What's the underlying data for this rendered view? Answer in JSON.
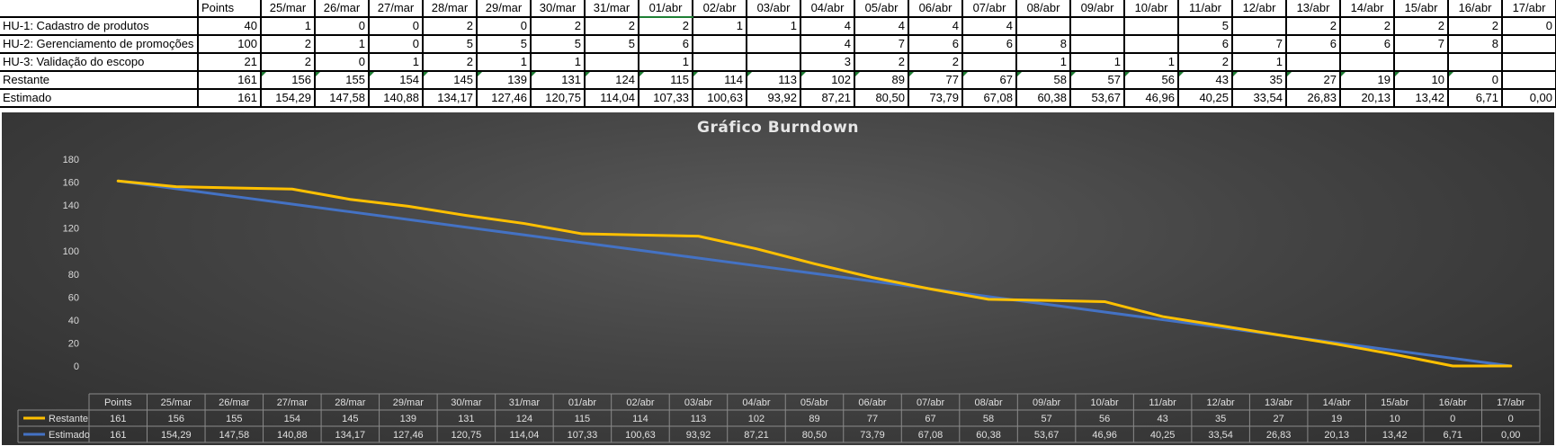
{
  "sheet": {
    "header": [
      "",
      "Points",
      "25/mar",
      "26/mar",
      "27/mar",
      "28/mar",
      "29/mar",
      "30/mar",
      "31/mar",
      "01/abr",
      "02/abr",
      "03/abr",
      "04/abr",
      "05/abr",
      "06/abr",
      "07/abr",
      "08/abr",
      "09/abr",
      "10/abr",
      "11/abr",
      "12/abr",
      "13/abr",
      "14/abr",
      "15/abr",
      "16/abr",
      "17/abr"
    ],
    "rows": [
      {
        "label": "HU-1: Cadastro de produtos",
        "cells": [
          "40",
          "1",
          "0",
          "0",
          "2",
          "0",
          "2",
          "2",
          "2",
          "1",
          "1",
          "4",
          "4",
          "4",
          "4",
          "",
          "",
          "",
          "5",
          "",
          "2",
          "2",
          "2",
          "2",
          "0"
        ]
      },
      {
        "label": "HU-2: Gerenciamento de promoções",
        "cells": [
          "100",
          "2",
          "1",
          "0",
          "5",
          "5",
          "5",
          "5",
          "6",
          "",
          "",
          "4",
          "7",
          "6",
          "6",
          "8",
          "",
          "",
          "6",
          "7",
          "6",
          "6",
          "7",
          "8",
          ""
        ]
      },
      {
        "label": "HU-3: Validação do escopo",
        "cells": [
          "21",
          "2",
          "0",
          "1",
          "2",
          "1",
          "1",
          "",
          "1",
          "",
          "",
          "3",
          "2",
          "2",
          "",
          "1",
          "1",
          "1",
          "2",
          "1",
          "",
          "",
          "",
          "",
          ""
        ]
      },
      {
        "label": "Restante",
        "cells": [
          "161",
          "156",
          "155",
          "154",
          "145",
          "139",
          "131",
          "124",
          "115",
          "114",
          "113",
          "102",
          "89",
          "77",
          "67",
          "58",
          "57",
          "56",
          "43",
          "35",
          "27",
          "19",
          "10",
          "0",
          ""
        ]
      },
      {
        "label": "Estimado",
        "cells": [
          "161",
          "154,29",
          "147,58",
          "140,88",
          "134,17",
          "127,46",
          "120,75",
          "114,04",
          "107,33",
          "100,63",
          "93,92",
          "87,21",
          "80,50",
          "73,79",
          "67,08",
          "60,38",
          "53,67",
          "46,96",
          "40,25",
          "33,54",
          "26,83",
          "20,13",
          "13,42",
          "6,71",
          "0,00"
        ]
      }
    ]
  },
  "chart_data": {
    "type": "line",
    "title": "Gráfico Burndown",
    "categories": [
      "Points",
      "25/mar",
      "26/mar",
      "27/mar",
      "28/mar",
      "29/mar",
      "30/mar",
      "31/mar",
      "01/abr",
      "02/abr",
      "03/abr",
      "04/abr",
      "05/abr",
      "06/abr",
      "07/abr",
      "08/abr",
      "09/abr",
      "10/abr",
      "11/abr",
      "12/abr",
      "13/abr",
      "14/abr",
      "15/abr",
      "16/abr",
      "17/abr"
    ],
    "ylim": [
      0,
      180
    ],
    "yticks": [
      0,
      20,
      40,
      60,
      80,
      100,
      120,
      140,
      160,
      180
    ],
    "grid": false,
    "legend": "data-table",
    "series": [
      {
        "name": "Restante",
        "color": "#FFC000",
        "values": [
          161,
          156,
          155,
          154,
          145,
          139,
          131,
          124,
          115,
          114,
          113,
          102,
          89,
          77,
          67,
          58,
          57,
          56,
          43,
          35,
          27,
          19,
          10,
          0,
          0
        ],
        "labels": [
          "161",
          "156",
          "155",
          "154",
          "145",
          "139",
          "131",
          "124",
          "115",
          "114",
          "113",
          "102",
          "89",
          "77",
          "67",
          "58",
          "57",
          "56",
          "43",
          "35",
          "27",
          "19",
          "10",
          "0",
          "0"
        ]
      },
      {
        "name": "Estimado",
        "color": "#4472C4",
        "values": [
          161,
          154.29,
          147.58,
          140.88,
          134.17,
          127.46,
          120.75,
          114.04,
          107.33,
          100.63,
          93.92,
          87.21,
          80.5,
          73.79,
          67.08,
          60.38,
          53.67,
          46.96,
          40.25,
          33.54,
          26.83,
          20.13,
          13.42,
          6.71,
          0
        ],
        "labels": [
          "161",
          "154,29",
          "147,58",
          "140,88",
          "134,17",
          "127,46",
          "120,75",
          "114,04",
          "107,33",
          "100,63",
          "93,92",
          "87,21",
          "80,50",
          "73,79",
          "67,08",
          "60,38",
          "53,67",
          "46,96",
          "40,25",
          "33,54",
          "26,83",
          "20,13",
          "13,42",
          "6,71",
          "0,00"
        ]
      }
    ]
  }
}
